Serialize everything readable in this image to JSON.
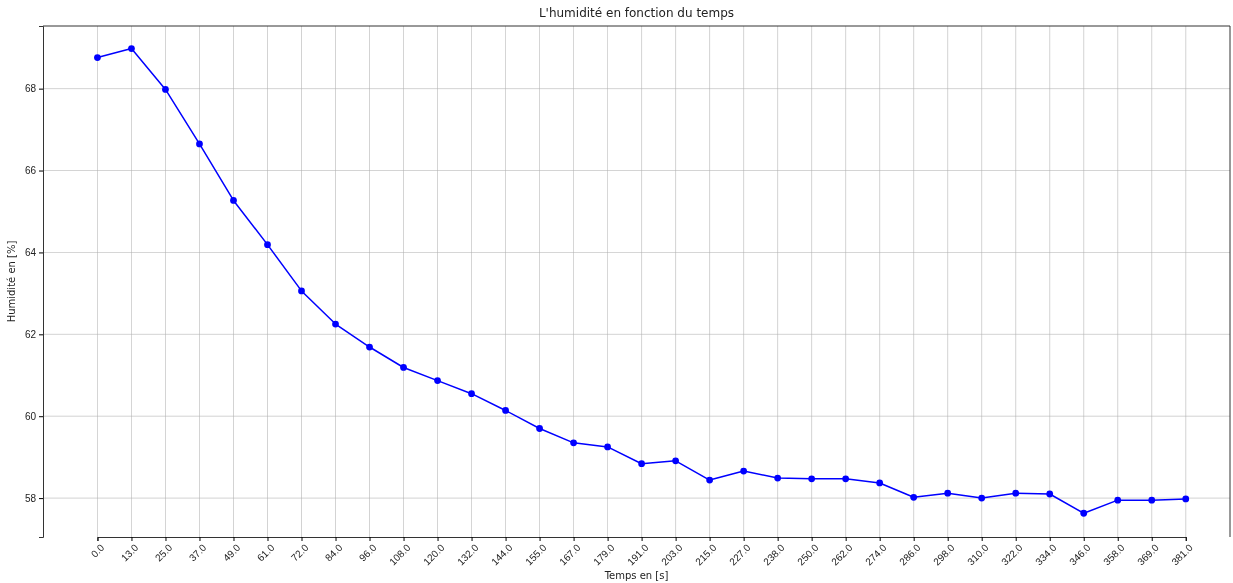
{
  "chart_data": {
    "type": "line",
    "title": "L'humidité en fonction du temps",
    "xlabel": "Temps en [s]",
    "ylabel": "Humidité en [%]",
    "categories": [
      "0.0",
      "13.0",
      "25.0",
      "37.0",
      "49.0",
      "61.0",
      "72.0",
      "84.0",
      "96.0",
      "108.0",
      "120.0",
      "132.0",
      "144.0",
      "155.0",
      "167.0",
      "179.0",
      "191.0",
      "203.0",
      "215.0",
      "227.0",
      "238.0",
      "250.0",
      "262.0",
      "274.0",
      "286.0",
      "298.0",
      "310.0",
      "322.0",
      "334.0",
      "346.0",
      "358.0",
      "369.0",
      "381.0"
    ],
    "series": [
      {
        "color": "#0000ff",
        "values": [
          68.76,
          68.98,
          67.98,
          66.65,
          65.27,
          64.19,
          63.06,
          62.25,
          61.69,
          61.19,
          60.87,
          60.55,
          60.14,
          59.7,
          59.35,
          59.25,
          58.84,
          58.91,
          58.44,
          58.66,
          58.49,
          58.47,
          58.47,
          58.37,
          58.02,
          58.12,
          58.0,
          58.12,
          58.1,
          57.63,
          57.95,
          57.95,
          57.98
        ]
      }
    ],
    "ylim": [
      57.05,
      69.53
    ],
    "yticks": [
      58,
      60,
      62,
      64,
      66,
      68
    ],
    "grid": true,
    "marker": "circle",
    "line_style": "solid"
  }
}
